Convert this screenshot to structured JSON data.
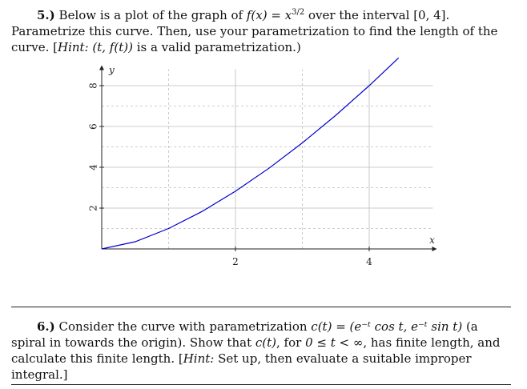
{
  "problem5": {
    "number": "5.)",
    "text_a": "Below is a plot of the graph of ",
    "func": "f(x) = x",
    "func_exp": "3/2",
    "text_b": " over the interval [0, 4]. Parametrize this curve. Then, use your parametrization to find the length of the curve. [",
    "hint_label": "Hint:",
    "hint_math": " (t, f(t))",
    "hint_text": " is a valid parametrization.)"
  },
  "chart_data": {
    "type": "line",
    "xlabel": "x",
    "ylabel": "y",
    "xlim": [
      0,
      5
    ],
    "ylim": [
      0,
      9
    ],
    "xticks": [
      "2",
      "4"
    ],
    "yticks": [
      "2",
      "4",
      "6",
      "8"
    ],
    "grid": true,
    "series": [
      {
        "color": "#0000cc",
        "x": [
          0,
          0.5,
          1,
          1.5,
          2,
          2.5,
          3,
          3.5,
          4,
          4.44
        ],
        "y": [
          0,
          0.354,
          1,
          1.837,
          2.828,
          3.953,
          5.196,
          6.548,
          8,
          9.36
        ]
      }
    ]
  },
  "problem6": {
    "number": "6.)",
    "text_a": "Consider the curve with parametrization ",
    "param": "c(t) = (e⁻ᵗ cos t, e⁻ᵗ sin t)",
    "text_b": " (a spiral in towards the origin). Show that ",
    "ct": "c(t)",
    "text_c": ", for ",
    "range": "0 ≤ t < ∞",
    "text_d": ", has finite length, and calculate this finite length. [",
    "hint_label": "Hint:",
    "hint_text": " Set up, then evaluate a suitable improper integral.]"
  }
}
